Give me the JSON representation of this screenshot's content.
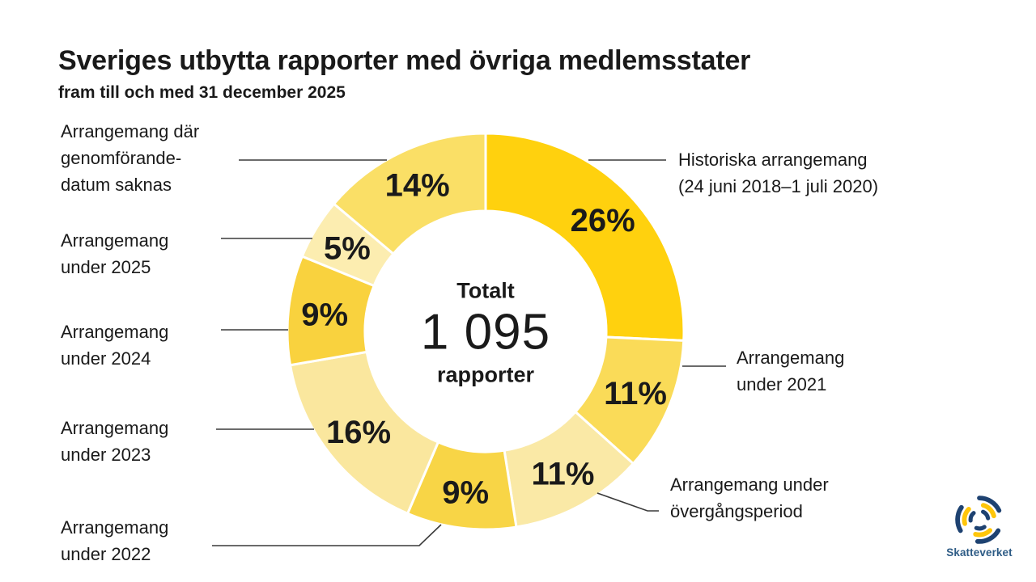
{
  "header": {
    "title": "Sveriges utbytta rapporter med övriga medlemsstater",
    "subtitle": "fram till och med 31 december 2025"
  },
  "chart_data": {
    "type": "pie",
    "donut": true,
    "title": "Sveriges utbytta rapporter med övriga medlemsstater fram till och med 31 december 2025",
    "unit": "%",
    "direction": "clockwise",
    "start_angle_deg": 0,
    "legend_position": "callout-labels",
    "grid": false,
    "center": {
      "label_top": "Totalt",
      "value": "1 095",
      "label_bottom": "rapporter"
    },
    "segments": [
      {
        "label": "Historiska arrangemang (24 juni 2018–1 juli 2020)",
        "value": 26,
        "pct_label": "26%",
        "color": "#FFD10E"
      },
      {
        "label": "Arrangemang under 2021",
        "value": 11,
        "pct_label": "11%",
        "color": "#FADB58"
      },
      {
        "label": "Arrangemang under övergångsperiod",
        "value": 11,
        "pct_label": "11%",
        "color": "#FAE9A6"
      },
      {
        "label": "Arrangemang under 2022",
        "value": 9,
        "pct_label": "9%",
        "color": "#F8D546"
      },
      {
        "label": "Arrangemang under 2023",
        "value": 16,
        "pct_label": "16%",
        "color": "#FAE79E"
      },
      {
        "label": "Arrangemang under 2024",
        "value": 9,
        "pct_label": "9%",
        "color": "#F9D23E"
      },
      {
        "label": "Arrangemang under 2025",
        "value": 5,
        "pct_label": "5%",
        "color": "#FCEDB0"
      },
      {
        "label": "Arrangemang där genomförandedatum saknas",
        "value": 14,
        "pct_label": "14%",
        "color": "#FADF66"
      }
    ]
  },
  "callouts": {
    "saknas": {
      "lines": [
        "Arrangemang där",
        "genomförande-",
        "datum saknas"
      ]
    },
    "a2025": {
      "lines": [
        "Arrangemang",
        "under 2025"
      ]
    },
    "a2024": {
      "lines": [
        "Arrangemang",
        "under 2024"
      ]
    },
    "a2023": {
      "lines": [
        "Arrangemang",
        "under 2023"
      ]
    },
    "a2022": {
      "lines": [
        "Arrangemang",
        "under 2022"
      ]
    },
    "hist": {
      "lines": [
        "Historiska arrangemang",
        "(24 juni 2018–1 juli 2020)"
      ]
    },
    "a2021": {
      "lines": [
        "Arrangemang",
        "under 2021"
      ]
    },
    "overgang": {
      "lines": [
        "Arrangemang under",
        "övergångsperiod"
      ]
    }
  },
  "logo": {
    "text": "Skatteverket",
    "blue": "#1E4271",
    "yellow": "#FFC60A",
    "text_color": "#2D5B85"
  }
}
